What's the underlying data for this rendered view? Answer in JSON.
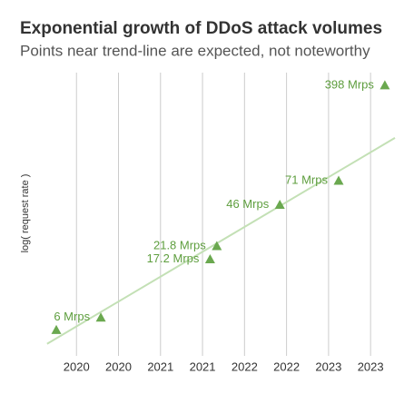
{
  "chart_data": {
    "type": "scatter",
    "title": "Exponential growth of DDoS attack volumes",
    "subtitle": "Points near trend-line are expected, not noteworthy",
    "y_label": "log( request rate )",
    "x": [
      2019.76,
      2020.29,
      2021.59,
      2021.67,
      2022.42,
      2023.12,
      2023.67
    ],
    "values": [
      4.8,
      6,
      17.2,
      21.8,
      46,
      71,
      398
    ],
    "value_labels": [
      null,
      "6 Mrps",
      "17.2 Mrps",
      "21.8 Mrps",
      "46 Mrps",
      "71 Mrps",
      "398 Mrps"
    ],
    "color": "#6aa84f",
    "label_color": "#5e9e3e",
    "trend_line": {
      "x": [
        2019.65,
        2023.79
      ],
      "values": [
        3.73,
        153.8
      ],
      "color": "#c3e0b5"
    },
    "xlim": [
      2019.63,
      2023.79
    ],
    "xticks": [
      {
        "value": 2020,
        "label": "2020"
      },
      {
        "value": 2020.5,
        "label": "2020"
      },
      {
        "value": 2021,
        "label": "2021"
      },
      {
        "value": 2021.5,
        "label": "2021"
      },
      {
        "value": 2022,
        "label": "2022"
      },
      {
        "value": 2022.5,
        "label": "2022"
      },
      {
        "value": 2023,
        "label": "2023"
      },
      {
        "value": 2023.5,
        "label": "2023"
      }
    ],
    "ylim": [
      3,
      500
    ],
    "y_log": true,
    "grid": true
  }
}
